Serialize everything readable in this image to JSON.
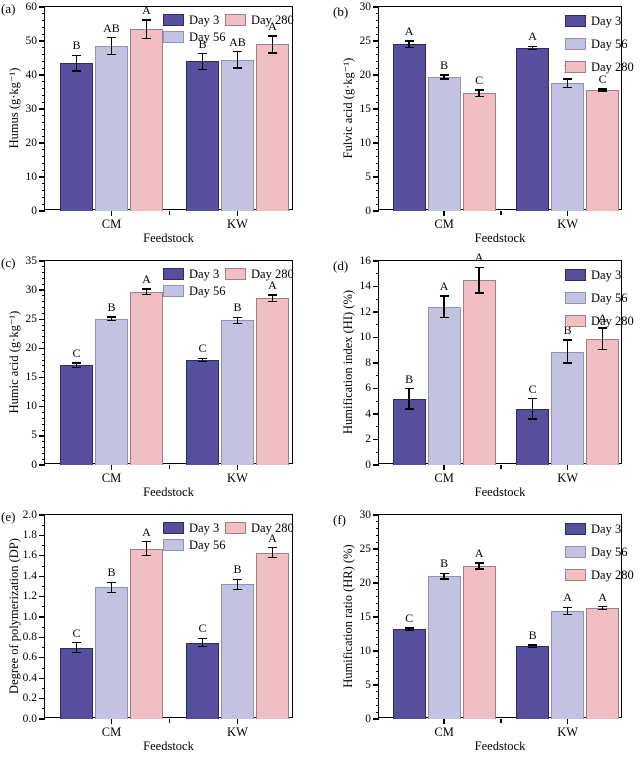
{
  "figure": {
    "name": "composting-humification-six-panel-figure",
    "categories": [
      "CM",
      "KW"
    ],
    "xlabel": "Feedstock",
    "legend_entries": [
      "Day 3",
      "Day 56",
      "Day 280"
    ],
    "series_colors": {
      "day3": {
        "fill": "#564F9E",
        "border": "#2F2B66"
      },
      "day56": {
        "fill": "#C1C3E1",
        "border": "#8F92BE"
      },
      "day280": {
        "fill": "#F1BFC3",
        "border": "#9D7F85"
      }
    }
  },
  "chart_data": [
    {
      "type": "bar",
      "panel": "(a)",
      "ylabel": "Humus (g·kg⁻¹)",
      "xlabel": "Feedstock",
      "categories": [
        "CM",
        "KW"
      ],
      "ylim": [
        0,
        60
      ],
      "ytick_step": 10,
      "y_decimals": 0,
      "minor_per_major": 4,
      "legend_layout": "two-col",
      "legend_entries": [
        "Day 3",
        "Day 56",
        "Day 280"
      ],
      "series": [
        {
          "name": "Day 3",
          "values": [
            43.5,
            44.0
          ],
          "errors": [
            2.3,
            2.3
          ],
          "letters": [
            "B",
            "B"
          ]
        },
        {
          "name": "Day 56",
          "values": [
            48.5,
            44.5
          ],
          "errors": [
            2.5,
            2.4
          ],
          "letters": [
            "AB",
            "AB"
          ]
        },
        {
          "name": "Day 280",
          "values": [
            53.5,
            49.0
          ],
          "errors": [
            2.7,
            2.5
          ],
          "letters": [
            "A",
            "A"
          ]
        }
      ]
    },
    {
      "type": "bar",
      "panel": "(b)",
      "ylabel": "Fulvic acid (g·kg⁻¹)",
      "xlabel": "Feedstock",
      "categories": [
        "CM",
        "KW"
      ],
      "ylim": [
        0,
        30
      ],
      "ytick_step": 5,
      "y_decimals": 0,
      "minor_per_major": 4,
      "legend_layout": "one-col",
      "legend_entries": [
        "Day 3",
        "Day 56",
        "Day 280"
      ],
      "series": [
        {
          "name": "Day 3",
          "values": [
            24.5,
            24.0
          ],
          "errors": [
            0.5,
            0.2
          ],
          "letters": [
            "A",
            "A"
          ]
        },
        {
          "name": "Day 56",
          "values": [
            19.7,
            18.8
          ],
          "errors": [
            0.3,
            0.6
          ],
          "letters": [
            "B",
            "B"
          ]
        },
        {
          "name": "Day 280",
          "values": [
            17.3,
            17.8
          ],
          "errors": [
            0.5,
            0.15
          ],
          "letters": [
            "C",
            "C"
          ]
        }
      ]
    },
    {
      "type": "bar",
      "panel": "(c)",
      "ylabel": "Humic acid (g·kg⁻¹)",
      "xlabel": "Feedstock",
      "categories": [
        "CM",
        "KW"
      ],
      "ylim": [
        0,
        35
      ],
      "ytick_step": 5,
      "y_decimals": 0,
      "minor_per_major": 4,
      "legend_layout": "two-col",
      "legend_entries": [
        "Day 3",
        "Day 56",
        "Day 280"
      ],
      "series": [
        {
          "name": "Day 3",
          "values": [
            17.1,
            18.0
          ],
          "errors": [
            0.4,
            0.3
          ],
          "letters": [
            "C",
            "C"
          ]
        },
        {
          "name": "Day 56",
          "values": [
            25.1,
            24.8
          ],
          "errors": [
            0.3,
            0.55
          ],
          "letters": [
            "B",
            "B"
          ]
        },
        {
          "name": "Day 280",
          "values": [
            29.7,
            28.6
          ],
          "errors": [
            0.5,
            0.55
          ],
          "letters": [
            "A",
            "A"
          ]
        }
      ]
    },
    {
      "type": "bar",
      "panel": "(d)",
      "ylabel": "Humification index (HI) (%)",
      "xlabel": "Feedstock",
      "categories": [
        "CM",
        "KW"
      ],
      "ylim": [
        0,
        16
      ],
      "ytick_step": 2,
      "y_decimals": 0,
      "minor_per_major": 1,
      "legend_layout": "one-col",
      "legend_entries": [
        "Day 3",
        "Day 56",
        "Day 280"
      ],
      "series": [
        {
          "name": "Day 3",
          "values": [
            5.2,
            4.4
          ],
          "errors": [
            0.8,
            0.8
          ],
          "letters": [
            "B",
            "C"
          ]
        },
        {
          "name": "Day 56",
          "values": [
            12.4,
            8.9
          ],
          "errors": [
            0.85,
            0.9
          ],
          "letters": [
            "A",
            "B"
          ]
        },
        {
          "name": "Day 280",
          "values": [
            14.5,
            9.9
          ],
          "errors": [
            1.0,
            0.85
          ],
          "letters": [
            "A",
            "A"
          ]
        }
      ]
    },
    {
      "type": "bar",
      "panel": "(e)",
      "ylabel": "Degree of polymerization (DP)",
      "xlabel": "Feedstock",
      "categories": [
        "CM",
        "KW"
      ],
      "ylim": [
        0,
        2.0
      ],
      "ytick_step": 0.2,
      "y_decimals": 1,
      "minor_per_major": 1,
      "legend_layout": "two-col",
      "legend_entries": [
        "Day 3",
        "Day 56",
        "Day 280"
      ],
      "series": [
        {
          "name": "Day 3",
          "values": [
            0.7,
            0.75
          ],
          "errors": [
            0.05,
            0.04
          ],
          "letters": [
            "C",
            "C"
          ]
        },
        {
          "name": "Day 56",
          "values": [
            1.29,
            1.32
          ],
          "errors": [
            0.05,
            0.05
          ],
          "letters": [
            "B",
            "B"
          ]
        },
        {
          "name": "Day 280",
          "values": [
            1.67,
            1.63
          ],
          "errors": [
            0.07,
            0.05
          ],
          "letters": [
            "A",
            "A"
          ]
        }
      ]
    },
    {
      "type": "bar",
      "panel": "(f)",
      "ylabel": "Humification ratio (HR) (%)",
      "xlabel": "Feedstock",
      "categories": [
        "CM",
        "KW"
      ],
      "ylim": [
        0,
        30
      ],
      "ytick_step": 5,
      "y_decimals": 0,
      "minor_per_major": 4,
      "legend_layout": "one-col",
      "legend_entries": [
        "Day 3",
        "Day 56",
        "Day 280"
      ],
      "series": [
        {
          "name": "Day 3",
          "values": [
            13.2,
            10.7
          ],
          "errors": [
            0.2,
            0.2
          ],
          "letters": [
            "C",
            "B"
          ]
        },
        {
          "name": "Day 56",
          "values": [
            21.0,
            15.9
          ],
          "errors": [
            0.4,
            0.5
          ],
          "letters": [
            "B",
            "A"
          ]
        },
        {
          "name": "Day 280",
          "values": [
            22.5,
            16.3
          ],
          "errors": [
            0.45,
            0.2
          ],
          "letters": [
            "A",
            "A"
          ]
        }
      ]
    }
  ]
}
